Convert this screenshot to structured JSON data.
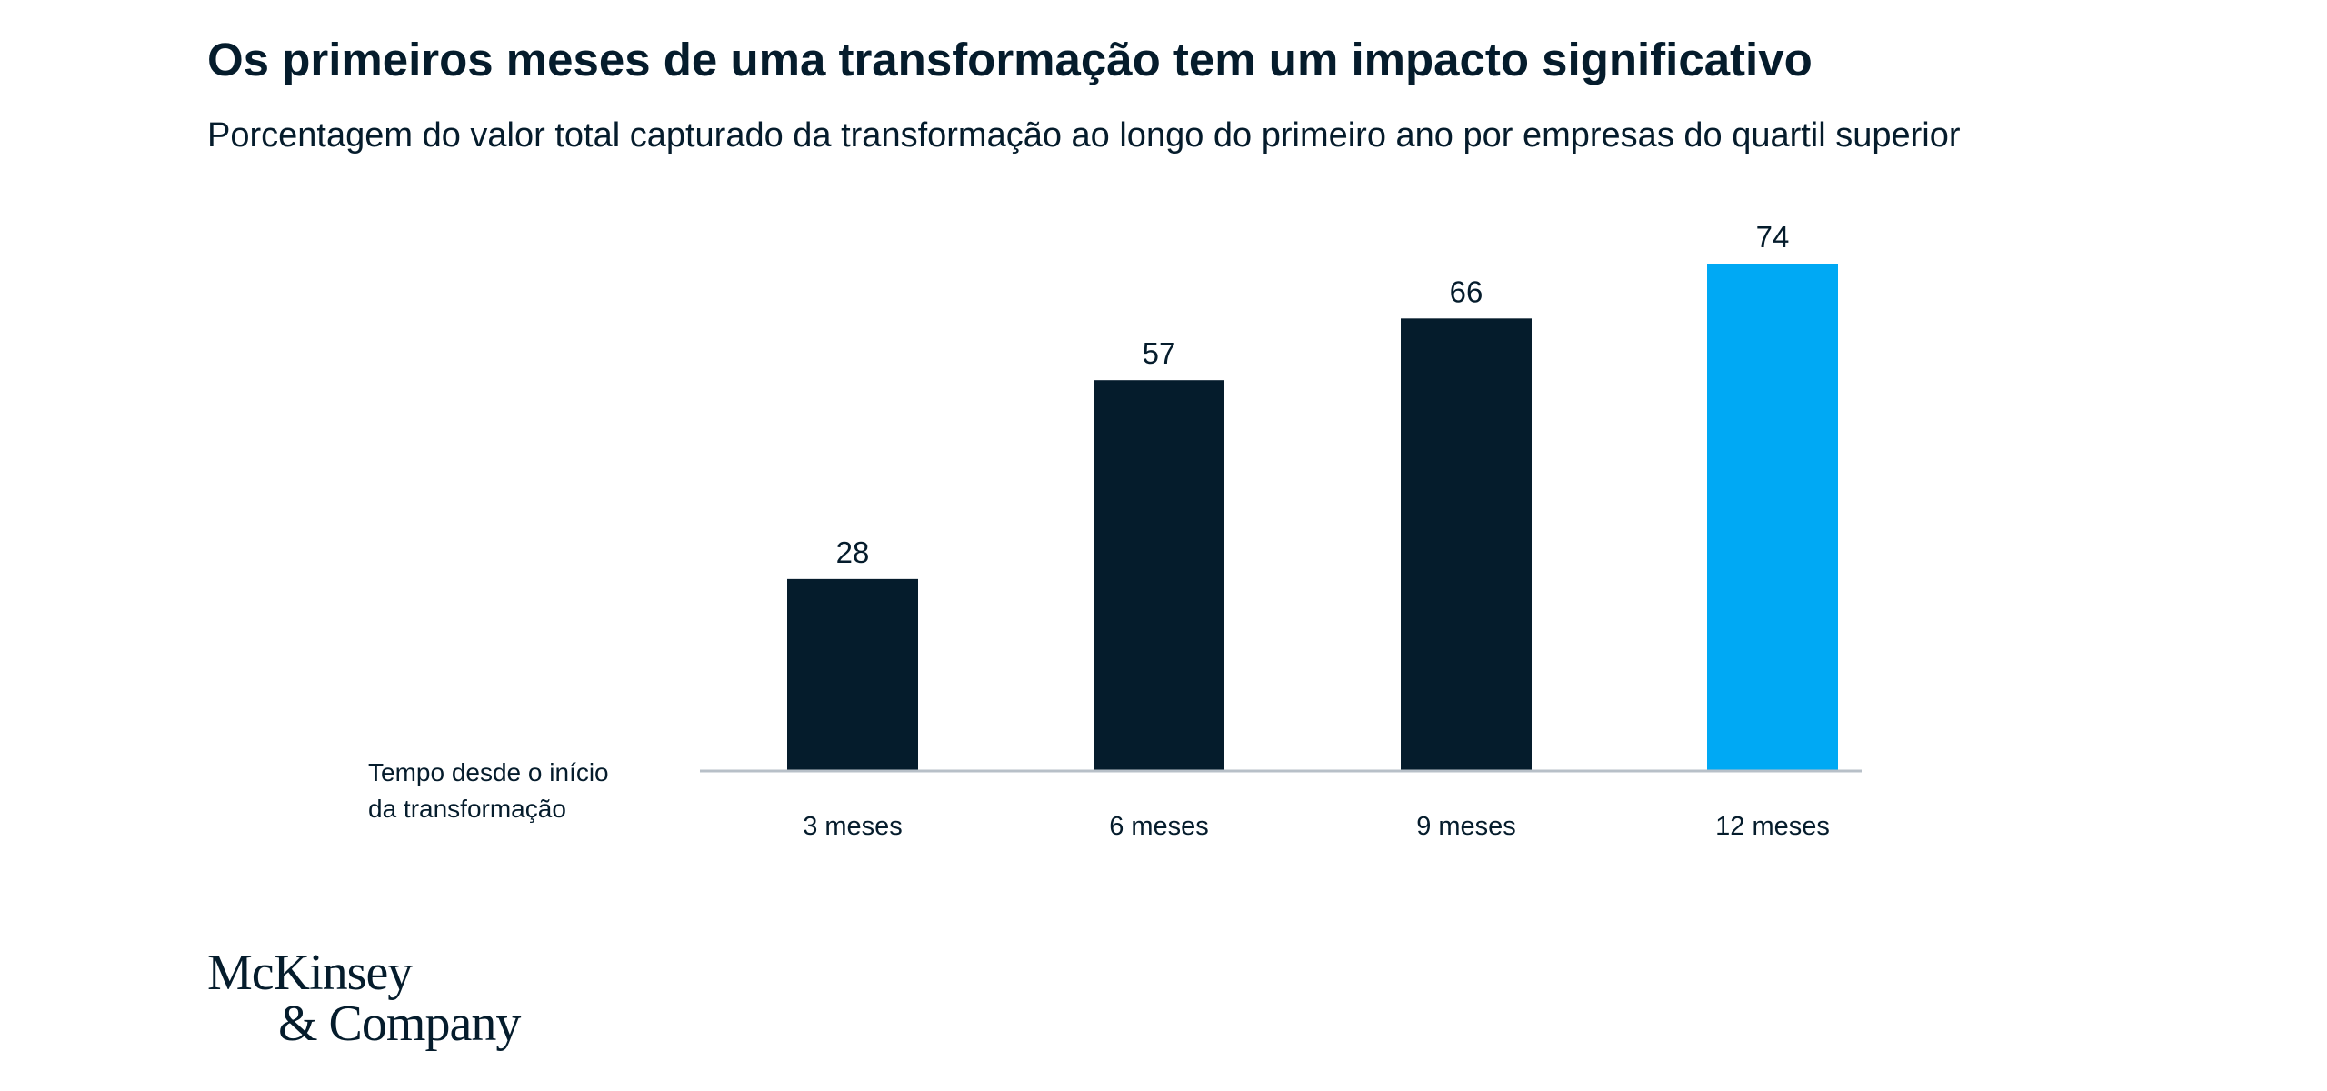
{
  "chart_data": {
    "type": "bar",
    "title": "Os primeiros meses de uma transformação tem um impacto significativo",
    "subtitle": "Porcentagem do valor total capturado da transformação ao longo do primeiro ano por empresas do quartil superior",
    "xlabel_lines": [
      "Tempo desde o início",
      "da transformação"
    ],
    "categories": [
      "3 meses",
      "6 meses",
      "9 meses",
      "12 meses"
    ],
    "values": [
      28,
      57,
      66,
      74
    ],
    "data_labels": [
      "28",
      "57",
      "66",
      "74"
    ],
    "ylim": [
      0,
      74
    ],
    "grid": false,
    "colors": {
      "default": "#051c2c",
      "highlight": "#00a9f4",
      "baseline": "#b8c0c8"
    },
    "highlight_index": 3
  },
  "logo": {
    "line1": "McKinsey",
    "line2": "& Company"
  }
}
